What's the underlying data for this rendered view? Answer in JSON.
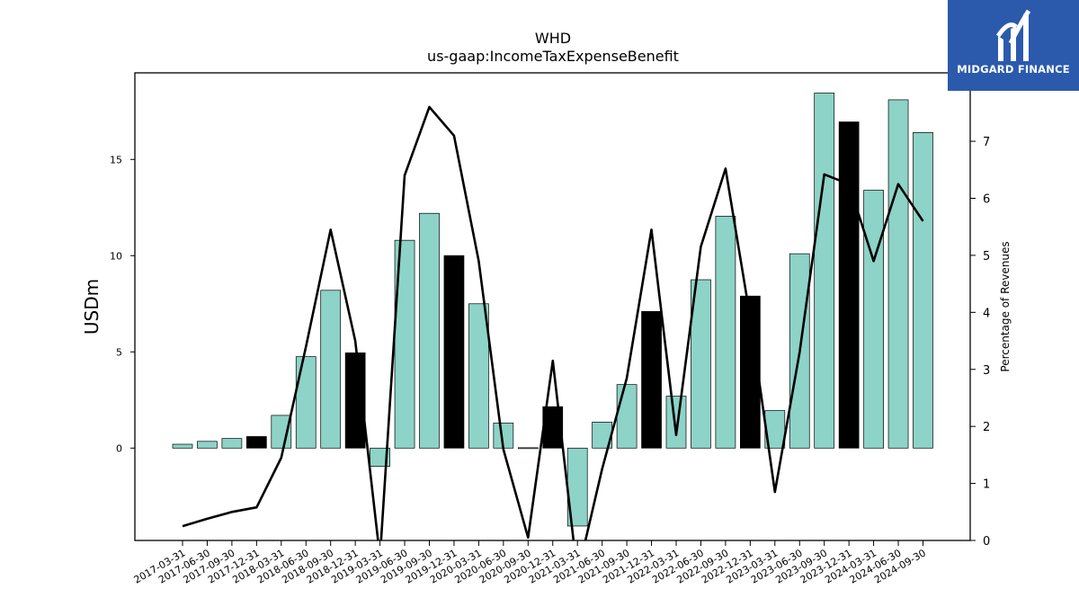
{
  "chart_data": {
    "type": "bar",
    "title": "WHD",
    "subtitle": "us-gaap:IncomeTaxExpenseBenefit",
    "ylabel": "USDm",
    "y2label": "Percentage of Revenues",
    "ylim": [
      -4.8,
      19.5
    ],
    "y2lim": [
      0,
      8.2
    ],
    "yticks": [
      0,
      5,
      10,
      15
    ],
    "y2ticks": [
      0,
      1,
      2,
      3,
      4,
      5,
      6,
      7
    ],
    "categories": [
      "2017-03-31",
      "2017-06-30",
      "2017-09-30",
      "2017-12-31",
      "2018-03-31",
      "2018-06-30",
      "2018-09-30",
      "2018-12-31",
      "2019-03-31",
      "2019-06-30",
      "2019-09-30",
      "2019-12-31",
      "2020-03-31",
      "2020-06-30",
      "2020-09-30",
      "2020-12-31",
      "2021-03-31",
      "2021-06-30",
      "2021-09-30",
      "2021-12-31",
      "2022-03-31",
      "2022-06-30",
      "2022-09-30",
      "2022-12-31",
      "2023-03-31",
      "2023-06-30",
      "2023-09-30",
      "2023-12-31",
      "2024-03-31",
      "2024-06-30",
      "2024-09-30"
    ],
    "series": [
      {
        "type": "bar",
        "values": [
          0.2,
          0.35,
          0.5,
          0.6,
          1.7,
          4.75,
          8.2,
          4.95,
          -0.95,
          10.8,
          12.2,
          10.0,
          7.5,
          1.3,
          0.02,
          2.15,
          -4.05,
          1.35,
          3.3,
          7.1,
          2.7,
          8.75,
          12.05,
          7.9,
          1.95,
          10.1,
          18.45,
          16.95,
          13.4,
          18.1,
          16.4
        ],
        "highlight": [
          false,
          false,
          false,
          true,
          false,
          false,
          false,
          true,
          false,
          false,
          false,
          true,
          false,
          false,
          false,
          true,
          false,
          false,
          false,
          true,
          false,
          false,
          false,
          true,
          false,
          false,
          false,
          true,
          false,
          false,
          false
        ]
      },
      {
        "type": "line",
        "axis": "right",
        "values": [
          0.25,
          0.38,
          0.5,
          0.58,
          1.45,
          3.4,
          5.45,
          3.5,
          -0.3,
          6.4,
          7.6,
          7.1,
          4.9,
          1.6,
          0.05,
          3.15,
          -0.6,
          1.25,
          2.85,
          5.45,
          1.85,
          5.15,
          6.52,
          3.9,
          0.85,
          3.3,
          6.42,
          6.25,
          4.9,
          6.25,
          5.6
        ]
      }
    ],
    "colors": {
      "bar": "#8dd3c7",
      "highlight": "#000000",
      "line": "#000000"
    }
  },
  "logo": {
    "text": "MIDGARD FINANCE"
  }
}
